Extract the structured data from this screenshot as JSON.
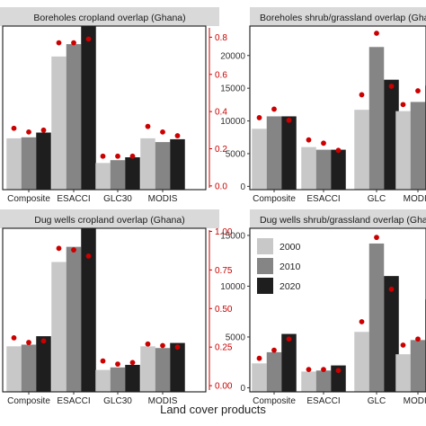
{
  "xlabel": "Land cover products",
  "legend": {
    "items": [
      {
        "label": "2000",
        "color": "#c8c8c8"
      },
      {
        "label": "2010",
        "color": "#858585"
      },
      {
        "label": "2020",
        "color": "#1e1e1e"
      }
    ]
  },
  "point_color": "#cc0000",
  "right_axis_color": "#cc0000",
  "chart_data": [
    {
      "type": "bar",
      "title": "Boreholes cropland overlap (Ghana)",
      "categories": [
        "Composite",
        "ESACCI",
        "GLC30",
        "MODIS"
      ],
      "series": [
        {
          "name": "2000",
          "values": [
            2700,
            7000,
            1400,
            2700
          ]
        },
        {
          "name": "2010",
          "values": [
            2750,
            7650,
            1550,
            2500
          ]
        },
        {
          "name": "2020",
          "values": [
            3000,
            8600,
            1700,
            2650
          ]
        }
      ],
      "ratio_points": [
        [
          0.31,
          0.29,
          0.3
        ],
        [
          0.77,
          0.77,
          0.79
        ],
        [
          0.16,
          0.16,
          0.16
        ],
        [
          0.32,
          0.29,
          0.27
        ]
      ],
      "ylim": [
        0,
        8600
      ],
      "right_ylim": [
        -0.02,
        0.86
      ],
      "right_ticks": [
        "0.0",
        "0.2",
        "0.4",
        "0.6",
        "0.8"
      ],
      "right_tick_values": [
        0,
        0.2,
        0.4,
        0.6,
        0.8
      ]
    },
    {
      "type": "bar",
      "title": "Boreholes shrub/grassland overlap (Ghana)",
      "categories": [
        "Composite",
        "ESACCI",
        "GLC",
        "MODIS"
      ],
      "series": [
        {
          "name": "2000",
          "values": [
            8800,
            6000,
            11700,
            11500
          ]
        },
        {
          "name": "2010",
          "values": [
            10700,
            5600,
            21300,
            12900
          ]
        },
        {
          "name": "2020",
          "values": [
            10700,
            5600,
            16300,
            15400
          ]
        }
      ],
      "points": [
        [
          10500,
          11800,
          10100
        ],
        [
          7100,
          6600,
          5500
        ],
        [
          14000,
          23400,
          15300
        ],
        [
          12500,
          14600,
          17700
        ]
      ],
      "ylim": [
        -500,
        24500
      ],
      "left_ticks": [
        "0",
        "5000",
        "10000",
        "15000",
        "20000"
      ],
      "left_tick_values": [
        0,
        5000,
        10000,
        15000,
        20000
      ]
    },
    {
      "type": "bar",
      "title": "Dug wells cropland overlap (Ghana)",
      "categories": [
        "Composite",
        "ESACCI",
        "GLC30",
        "MODIS"
      ],
      "series": [
        {
          "name": "2000",
          "values": [
            2700,
            7700,
            1300,
            2700
          ]
        },
        {
          "name": "2010",
          "values": [
            2800,
            8600,
            1450,
            2600
          ]
        },
        {
          "name": "2020",
          "values": [
            3300,
            9700,
            1600,
            2900
          ]
        }
      ],
      "ratio_points": [
        [
          0.31,
          0.28,
          0.29
        ],
        [
          0.89,
          0.88,
          0.84
        ],
        [
          0.16,
          0.14,
          0.15
        ],
        [
          0.27,
          0.26,
          0.25
        ]
      ],
      "ylim": [
        0,
        9700
      ],
      "right_ylim": [
        -0.04,
        1.02
      ],
      "right_ticks": [
        "0.00",
        "0.25",
        "0.50",
        "0.75",
        "1.00"
      ],
      "right_tick_values": [
        0,
        0.25,
        0.5,
        0.75,
        1.0
      ]
    },
    {
      "type": "bar",
      "title": "Dug wells shrub/grassland overlap (Ghana)",
      "categories": [
        "Composite",
        "ESACCI",
        "GLC",
        "MODIS"
      ],
      "series": [
        {
          "name": "2000",
          "values": [
            2400,
            1600,
            5500,
            3300
          ]
        },
        {
          "name": "2010",
          "values": [
            3500,
            1700,
            14200,
            4700
          ]
        },
        {
          "name": "2020",
          "values": [
            5300,
            2200,
            11000,
            8700
          ]
        }
      ],
      "points": [
        [
          2900,
          3700,
          4800
        ],
        [
          1800,
          1800,
          1700
        ],
        [
          6500,
          14800,
          9700
        ],
        [
          4200,
          4800,
          8100
        ]
      ],
      "ylim": [
        -400,
        15700
      ],
      "left_ticks": [
        "0",
        "5000",
        "10000",
        "15000"
      ],
      "left_tick_values": [
        0,
        5000,
        10000,
        15000
      ]
    }
  ]
}
